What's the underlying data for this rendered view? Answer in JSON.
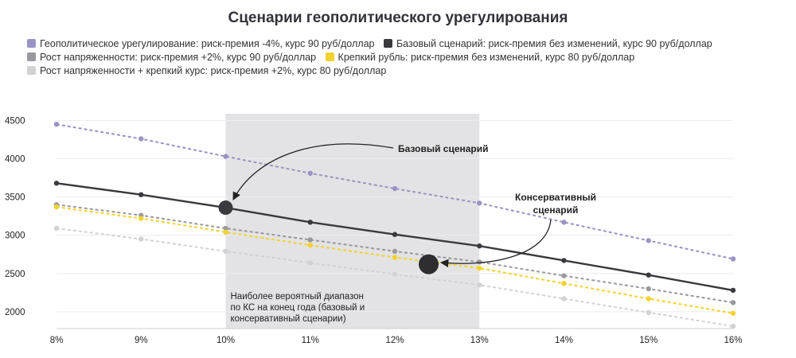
{
  "chart_data": {
    "type": "line",
    "title": "Сценарии геополитического урегулирования",
    "xlabel": "",
    "ylabel": "",
    "x": [
      "8%",
      "9%",
      "10%",
      "11%",
      "12%",
      "13%",
      "14%",
      "15%",
      "16%"
    ],
    "xlim": [
      8,
      16
    ],
    "ylim": [
      1780,
      4650
    ],
    "y_ticks": [
      2000,
      2500,
      3000,
      3500,
      4000,
      4500
    ],
    "grid": "horizontal",
    "legend_position": "top-left",
    "series": [
      {
        "name": "Геополитическое урегулирование: риск-премия -4%, курс 90 руб/доллар",
        "color": "#9a94c4",
        "style": "dashed",
        "values": [
          4450,
          4260,
          4030,
          3810,
          3610,
          3420,
          3170,
          2930,
          2690
        ]
      },
      {
        "name": "Базовый сценарий: риск-премия без изменений, курс 90 руб/доллар",
        "color": "#3a3a3e",
        "style": "solid",
        "values": [
          3680,
          3530,
          3360,
          3170,
          3010,
          2860,
          2670,
          2480,
          2280
        ]
      },
      {
        "name": "Рост напряженности: риск-премия +2%, курс 90 руб/доллар",
        "color": "#9a9a9e",
        "style": "dashed",
        "values": [
          3400,
          3260,
          3090,
          2940,
          2790,
          2650,
          2470,
          2300,
          2120
        ]
      },
      {
        "name": "Крепкий рубль: риск-премия без изменений, курс 80 руб/доллар",
        "color": "#f2d22e",
        "style": "dashed",
        "values": [
          3370,
          3220,
          3040,
          2870,
          2710,
          2570,
          2370,
          2170,
          1980
        ]
      },
      {
        "name": "Рост напряженности + крепкий курс: риск-премия +2%, курс 80 руб/доллар",
        "color": "#d2d2d5",
        "style": "dashed",
        "values": [
          3090,
          2950,
          2790,
          2640,
          2490,
          2350,
          2170,
          1990,
          1810
        ]
      }
    ],
    "highlight_band": {
      "x_start": 10,
      "x_end": 13,
      "label": [
        "Наиболее вероятный диапазон",
        "по КС на конец года (базовый и",
        "консервативный сценарии)"
      ]
    },
    "markers": [
      {
        "x": 10,
        "y": 3360
      },
      {
        "x": 12.4,
        "y": 2620
      }
    ],
    "annotations": [
      {
        "lines": [
          "Базовый сценарий"
        ]
      },
      {
        "lines": [
          "Консервативный",
          "сценарий"
        ]
      }
    ]
  }
}
